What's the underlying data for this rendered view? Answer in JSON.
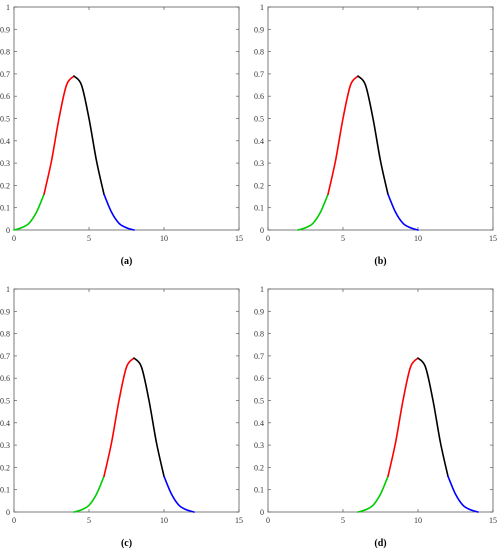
{
  "chart_data": [
    {
      "type": "line",
      "caption": "(a)",
      "xlim": [
        0,
        15
      ],
      "ylim": [
        0,
        1
      ],
      "x_ticks": [
        "0",
        "5",
        "10",
        "15"
      ],
      "y_ticks": [
        "0",
        "0.1",
        "0.2",
        "0.3",
        "0.4",
        "0.5",
        "0.6",
        "0.7",
        "0.8",
        "0.9",
        "1"
      ],
      "grid": false,
      "series": [
        {
          "color": "#00cc00",
          "x": [
            0,
            0.5,
            1,
            1.5,
            2
          ],
          "y": [
            0.0,
            0.01,
            0.03,
            0.08,
            0.16
          ]
        },
        {
          "color": "#ff0000",
          "x": [
            2,
            2.5,
            3,
            3.5,
            4
          ],
          "y": [
            0.16,
            0.31,
            0.5,
            0.65,
            0.69
          ]
        },
        {
          "color": "#000000",
          "x": [
            4,
            4.5,
            5,
            5.5,
            6
          ],
          "y": [
            0.69,
            0.65,
            0.5,
            0.31,
            0.16
          ]
        },
        {
          "color": "#0000ff",
          "x": [
            6,
            6.5,
            7,
            7.5,
            8
          ],
          "y": [
            0.16,
            0.08,
            0.03,
            0.01,
            0.0
          ]
        }
      ]
    },
    {
      "type": "line",
      "caption": "(b)",
      "xlim": [
        0,
        15
      ],
      "ylim": [
        0,
        1
      ],
      "x_ticks": [
        "0",
        "5",
        "10",
        "15"
      ],
      "y_ticks": [
        "0",
        "0.1",
        "0.2",
        "0.3",
        "0.4",
        "0.5",
        "0.6",
        "0.7",
        "0.8",
        "0.9",
        "1"
      ],
      "grid": false,
      "series": [
        {
          "color": "#00cc00",
          "x": [
            2,
            2.5,
            3,
            3.5,
            4
          ],
          "y": [
            0.0,
            0.01,
            0.03,
            0.08,
            0.16
          ]
        },
        {
          "color": "#ff0000",
          "x": [
            4,
            4.5,
            5,
            5.5,
            6
          ],
          "y": [
            0.16,
            0.31,
            0.5,
            0.65,
            0.69
          ]
        },
        {
          "color": "#000000",
          "x": [
            6,
            6.5,
            7,
            7.5,
            8
          ],
          "y": [
            0.69,
            0.65,
            0.5,
            0.31,
            0.16
          ]
        },
        {
          "color": "#0000ff",
          "x": [
            8,
            8.5,
            9,
            9.5,
            10
          ],
          "y": [
            0.16,
            0.08,
            0.03,
            0.01,
            0.0
          ]
        }
      ]
    },
    {
      "type": "line",
      "caption": "(c)",
      "xlim": [
        0,
        15
      ],
      "ylim": [
        0,
        1
      ],
      "x_ticks": [
        "0",
        "5",
        "10",
        "15"
      ],
      "y_ticks": [
        "0",
        "0.1",
        "0.2",
        "0.3",
        "0.4",
        "0.5",
        "0.6",
        "0.7",
        "0.8",
        "0.9",
        "1"
      ],
      "grid": false,
      "series": [
        {
          "color": "#00cc00",
          "x": [
            4,
            4.5,
            5,
            5.5,
            6
          ],
          "y": [
            0.0,
            0.01,
            0.03,
            0.08,
            0.16
          ]
        },
        {
          "color": "#ff0000",
          "x": [
            6,
            6.5,
            7,
            7.5,
            8
          ],
          "y": [
            0.16,
            0.31,
            0.5,
            0.65,
            0.69
          ]
        },
        {
          "color": "#000000",
          "x": [
            8,
            8.5,
            9,
            9.5,
            10
          ],
          "y": [
            0.69,
            0.65,
            0.5,
            0.31,
            0.16
          ]
        },
        {
          "color": "#0000ff",
          "x": [
            10,
            10.5,
            11,
            11.5,
            12
          ],
          "y": [
            0.16,
            0.08,
            0.03,
            0.01,
            0.0
          ]
        }
      ]
    },
    {
      "type": "line",
      "caption": "(d)",
      "xlim": [
        0,
        15
      ],
      "ylim": [
        0,
        1
      ],
      "x_ticks": [
        "0",
        "5",
        "10",
        "15"
      ],
      "y_ticks": [
        "0",
        "0.1",
        "0.2",
        "0.3",
        "0.4",
        "0.5",
        "0.6",
        "0.7",
        "0.8",
        "0.9",
        "1"
      ],
      "grid": false,
      "series": [
        {
          "color": "#00cc00",
          "x": [
            6,
            6.5,
            7,
            7.5,
            8
          ],
          "y": [
            0.0,
            0.01,
            0.03,
            0.08,
            0.16
          ]
        },
        {
          "color": "#ff0000",
          "x": [
            8,
            8.5,
            9,
            9.5,
            10
          ],
          "y": [
            0.16,
            0.31,
            0.5,
            0.65,
            0.69
          ]
        },
        {
          "color": "#000000",
          "x": [
            10,
            10.5,
            11,
            11.5,
            12
          ],
          "y": [
            0.69,
            0.65,
            0.5,
            0.31,
            0.16
          ]
        },
        {
          "color": "#0000ff",
          "x": [
            12,
            12.5,
            13,
            13.5,
            14
          ],
          "y": [
            0.16,
            0.08,
            0.03,
            0.01,
            0.0
          ]
        }
      ]
    }
  ]
}
